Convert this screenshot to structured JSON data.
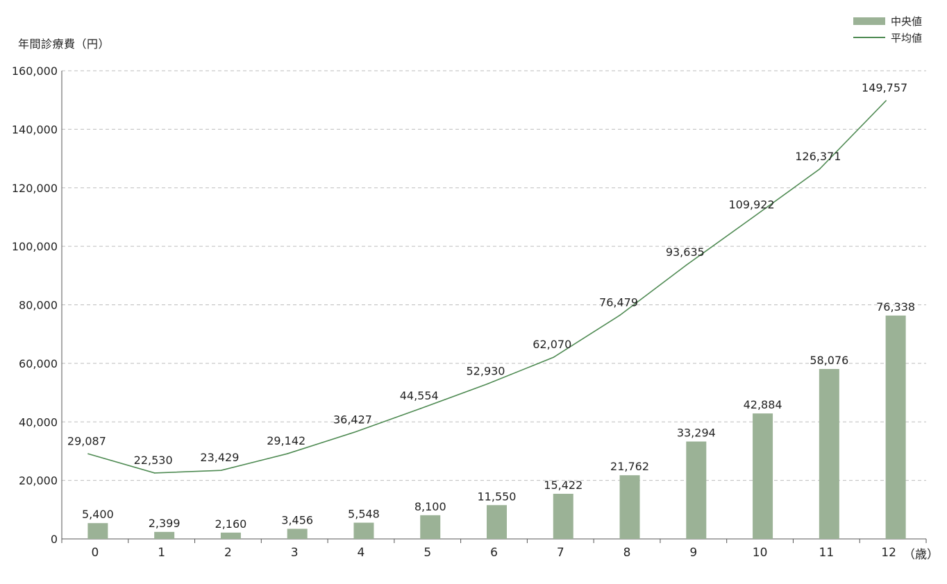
{
  "chart_data": {
    "type": "bar",
    "ylabel": "年間診療費（円）",
    "x_unit": "（歳）",
    "categories": [
      "0",
      "1",
      "2",
      "3",
      "4",
      "5",
      "6",
      "7",
      "8",
      "9",
      "10",
      "11",
      "12"
    ],
    "ylim": [
      0,
      160000
    ],
    "y_ticks": [
      0,
      20000,
      40000,
      60000,
      80000,
      100000,
      120000,
      140000,
      160000
    ],
    "y_tick_labels": [
      "0",
      "20,000",
      "40,000",
      "60,000",
      "80,000",
      "100,000",
      "120,000",
      "140,000",
      "160,000"
    ],
    "grid": "horizontal dashed",
    "legend_position": "top-right",
    "series": [
      {
        "name": "中央値",
        "type": "bar",
        "color": "#9bb296",
        "values": [
          5400,
          2399,
          2160,
          3456,
          5548,
          8100,
          11550,
          15422,
          21762,
          33294,
          42884,
          58076,
          76338
        ],
        "labels": [
          "5,400",
          "2,399",
          "2,160",
          "3,456",
          "5,548",
          "8,100",
          "11,550",
          "15,422",
          "21,762",
          "33,294",
          "42,884",
          "58,076",
          "76,338"
        ]
      },
      {
        "name": "平均値",
        "type": "line",
        "color": "#4e8a52",
        "values": [
          29087,
          22530,
          23429,
          29142,
          36427,
          44554,
          52930,
          62070,
          76479,
          93635,
          109922,
          126371,
          149757
        ],
        "labels": [
          "29,087",
          "22,530",
          "23,429",
          "29,142",
          "36,427",
          "44,554",
          "52,930",
          "62,070",
          "76,479",
          "93,635",
          "109,922",
          "126,371",
          "149,757"
        ]
      }
    ]
  }
}
